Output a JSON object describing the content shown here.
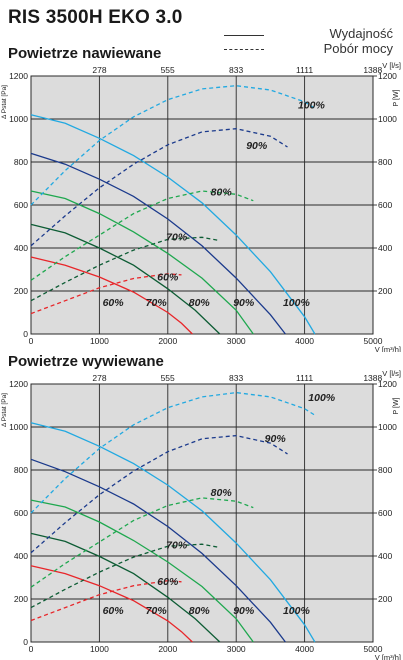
{
  "header": {
    "title": "RIS 3500H EKO 3.0",
    "legend_solid": "Wydajność",
    "legend_dashed": "Pobór mocy"
  },
  "chart_data": [
    {
      "type": "line",
      "title": "Powietrze nawiewane",
      "xlabel": "V [m³/h]",
      "x2label": "V [l/s]",
      "ylabel": "Δ Pstat [Pa]",
      "y2label": "P [W]",
      "xlim": [
        0,
        5000
      ],
      "ylim": [
        0,
        1200
      ],
      "x_ticks": [
        "0",
        "1000",
        "2000",
        "3000",
        "4000",
        "5000"
      ],
      "x2_ticks": [
        "278",
        "555",
        "833",
        "1111",
        "1388"
      ],
      "y_ticks": [
        "0",
        "200",
        "400",
        "600",
        "800",
        "1000",
        "1200"
      ],
      "y2_ticks": [
        "200",
        "400",
        "600",
        "800",
        "1000",
        "1200"
      ],
      "grid": true,
      "series": [
        {
          "name": "60%",
          "style": "solid",
          "color": "#e8262a",
          "x": [
            0,
            500,
            1000,
            1500,
            2000,
            2200,
            2360
          ],
          "y": [
            358,
            320,
            265,
            195,
            100,
            50,
            0
          ]
        },
        {
          "name": "70%",
          "style": "solid",
          "color": "#0d5c34",
          "x": [
            0,
            500,
            1000,
            1500,
            2000,
            2400,
            2760
          ],
          "y": [
            510,
            470,
            400,
            320,
            210,
            110,
            0
          ]
        },
        {
          "name": "80%",
          "style": "solid",
          "color": "#1fa84f",
          "x": [
            0,
            500,
            1000,
            1500,
            2000,
            2500,
            3000,
            3250
          ],
          "y": [
            665,
            630,
            560,
            475,
            375,
            260,
            110,
            0
          ]
        },
        {
          "name": "90%",
          "style": "solid",
          "color": "#1b3a8c",
          "x": [
            0,
            500,
            1000,
            1500,
            2000,
            2500,
            3000,
            3500,
            3720
          ],
          "y": [
            840,
            790,
            720,
            640,
            535,
            410,
            260,
            90,
            0
          ]
        },
        {
          "name": "100%",
          "style": "solid",
          "color": "#22a9e1",
          "x": [
            0,
            500,
            1000,
            1500,
            2000,
            2500,
            3000,
            3500,
            4000,
            4150
          ],
          "y": [
            1020,
            980,
            910,
            830,
            730,
            610,
            460,
            290,
            80,
            0
          ]
        },
        {
          "name": "60%",
          "style": "dashed",
          "color": "#e8262a",
          "x": [
            0,
            500,
            1000,
            1500,
            2000,
            2200
          ],
          "y": [
            95,
            155,
            215,
            258,
            280,
            275
          ]
        },
        {
          "name": "70%",
          "style": "dashed",
          "color": "#0d5c34",
          "x": [
            0,
            500,
            1000,
            1500,
            2000,
            2500,
            2750
          ],
          "y": [
            155,
            240,
            320,
            390,
            440,
            450,
            435
          ]
        },
        {
          "name": "80%",
          "style": "dashed",
          "color": "#1fa84f",
          "x": [
            0,
            500,
            1000,
            1500,
            2000,
            2500,
            3000,
            3250
          ],
          "y": [
            250,
            360,
            460,
            560,
            630,
            665,
            650,
            620
          ]
        },
        {
          "name": "90%",
          "style": "dashed",
          "color": "#1b3a8c",
          "x": [
            0,
            500,
            1000,
            1500,
            2000,
            2500,
            3000,
            3500,
            3750
          ],
          "y": [
            410,
            550,
            680,
            790,
            880,
            940,
            955,
            920,
            870
          ]
        },
        {
          "name": "100%",
          "style": "dashed",
          "color": "#22a9e1",
          "x": [
            0,
            500,
            1000,
            1500,
            2000,
            2500,
            3000,
            3500,
            4000,
            4150
          ],
          "y": [
            600,
            760,
            900,
            1010,
            1090,
            1140,
            1155,
            1135,
            1080,
            1050
          ]
        }
      ],
      "annotations": [
        {
          "text": "100%",
          "x": 4100,
          "y": 1050
        },
        {
          "text": "90%",
          "x": 3300,
          "y": 860
        },
        {
          "text": "80%",
          "x": 2780,
          "y": 645
        },
        {
          "text": "70%",
          "x": 2130,
          "y": 435
        },
        {
          "text": "60%",
          "x": 2000,
          "y": 250
        },
        {
          "text": "60%",
          "x": 1200,
          "y": 130
        },
        {
          "text": "70%",
          "x": 1830,
          "y": 130
        },
        {
          "text": "80%",
          "x": 2460,
          "y": 130
        },
        {
          "text": "90%",
          "x": 3110,
          "y": 130
        },
        {
          "text": "100%",
          "x": 3880,
          "y": 130
        }
      ]
    },
    {
      "type": "line",
      "title": "Powietrze wywiewane",
      "xlabel": "V [m³/h]",
      "x2label": "V [l/s]",
      "ylabel": "Δ Pstat [Pa]",
      "y2label": "P [W]",
      "xlim": [
        0,
        5000
      ],
      "ylim": [
        0,
        1200
      ],
      "x_ticks": [
        "0",
        "1000",
        "2000",
        "3000",
        "4000",
        "5000"
      ],
      "x2_ticks": [
        "278",
        "555",
        "833",
        "1111",
        "1388"
      ],
      "y_ticks": [
        "0",
        "200",
        "400",
        "600",
        "800",
        "1000",
        "1200"
      ],
      "y2_ticks": [
        "200",
        "400",
        "600",
        "800",
        "1000",
        "1200"
      ],
      "grid": true,
      "series": [
        {
          "name": "60%",
          "style": "solid",
          "color": "#e8262a",
          "x": [
            0,
            500,
            1000,
            1500,
            2000,
            2200,
            2360
          ],
          "y": [
            355,
            318,
            262,
            192,
            98,
            48,
            0
          ]
        },
        {
          "name": "70%",
          "style": "solid",
          "color": "#0d5c34",
          "x": [
            0,
            500,
            1000,
            1500,
            2000,
            2400,
            2760
          ],
          "y": [
            505,
            468,
            398,
            318,
            208,
            108,
            0
          ]
        },
        {
          "name": "80%",
          "style": "solid",
          "color": "#1fa84f",
          "x": [
            0,
            500,
            1000,
            1500,
            2000,
            2500,
            3000,
            3250
          ],
          "y": [
            660,
            628,
            558,
            472,
            372,
            258,
            108,
            0
          ]
        },
        {
          "name": "90%",
          "style": "solid",
          "color": "#1b3a8c",
          "x": [
            0,
            500,
            1000,
            1500,
            2000,
            2500,
            3000,
            3500,
            3720
          ],
          "y": [
            850,
            792,
            722,
            642,
            537,
            412,
            262,
            92,
            0
          ]
        },
        {
          "name": "100%",
          "style": "solid",
          "color": "#22a9e1",
          "x": [
            0,
            500,
            1000,
            1500,
            2000,
            2500,
            3000,
            3500,
            4000,
            4150
          ],
          "y": [
            1020,
            980,
            910,
            830,
            730,
            610,
            460,
            290,
            80,
            0
          ]
        },
        {
          "name": "60%",
          "style": "dashed",
          "color": "#e8262a",
          "x": [
            0,
            500,
            1000,
            1500,
            2000,
            2200
          ],
          "y": [
            100,
            160,
            220,
            262,
            285,
            280
          ]
        },
        {
          "name": "70%",
          "style": "dashed",
          "color": "#0d5c34",
          "x": [
            0,
            500,
            1000,
            1500,
            2000,
            2500,
            2750
          ],
          "y": [
            160,
            245,
            325,
            395,
            445,
            455,
            440
          ]
        },
        {
          "name": "80%",
          "style": "dashed",
          "color": "#1fa84f",
          "x": [
            0,
            500,
            1000,
            1500,
            2000,
            2500,
            3000,
            3250
          ],
          "y": [
            255,
            365,
            465,
            565,
            635,
            670,
            655,
            625
          ]
        },
        {
          "name": "90%",
          "style": "dashed",
          "color": "#1b3a8c",
          "x": [
            0,
            500,
            1000,
            1500,
            2000,
            2500,
            3000,
            3500,
            3750
          ],
          "y": [
            415,
            555,
            685,
            795,
            885,
            945,
            960,
            925,
            875
          ]
        },
        {
          "name": "100%",
          "style": "dashed",
          "color": "#22a9e1",
          "x": [
            0,
            500,
            1000,
            1500,
            2000,
            2500,
            3000,
            3500,
            4000,
            4150
          ],
          "y": [
            600,
            760,
            900,
            1010,
            1090,
            1140,
            1160,
            1140,
            1085,
            1055
          ]
        }
      ],
      "annotations": [
        {
          "text": "100%",
          "x": 4250,
          "y": 1120
        },
        {
          "text": "90%",
          "x": 3570,
          "y": 930
        },
        {
          "text": "80%",
          "x": 2780,
          "y": 680
        },
        {
          "text": "70%",
          "x": 2130,
          "y": 435
        },
        {
          "text": "60%",
          "x": 2000,
          "y": 265
        },
        {
          "text": "60%",
          "x": 1200,
          "y": 130
        },
        {
          "text": "70%",
          "x": 1830,
          "y": 130
        },
        {
          "text": "80%",
          "x": 2460,
          "y": 130
        },
        {
          "text": "90%",
          "x": 3110,
          "y": 130
        },
        {
          "text": "100%",
          "x": 3880,
          "y": 130
        }
      ]
    }
  ]
}
